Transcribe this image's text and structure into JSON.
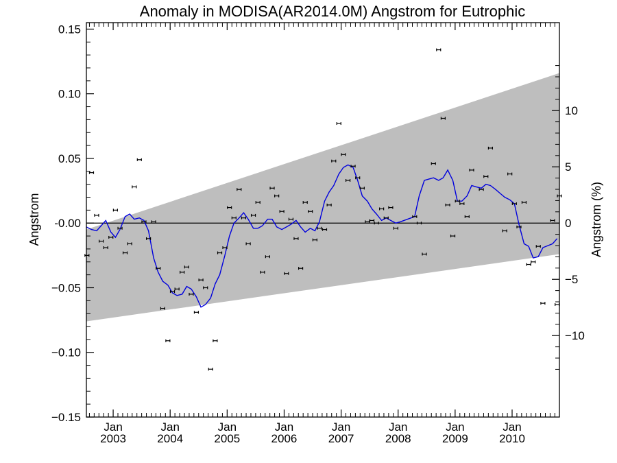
{
  "chart_data": {
    "type": "scatter",
    "title": "Anomaly in MODISA(AR2014.0M) Angstrom for Eutrophic",
    "ylabel": "Angstrom",
    "ylabel_right": "Angstrom (%)",
    "ylim": [
      -0.15,
      0.155
    ],
    "y_ticks": [
      {
        "value": 0.15,
        "label": "0.15"
      },
      {
        "value": 0.1,
        "label": "0.10"
      },
      {
        "value": 0.05,
        "label": "0.05"
      },
      {
        "value": 0.0,
        "label": "-0.00"
      },
      {
        "value": -0.05,
        "label": "−0.05"
      },
      {
        "value": -0.1,
        "label": "−0.10"
      },
      {
        "value": -0.15,
        "label": "−0.15"
      }
    ],
    "y2_ticks": [
      {
        "value": 10,
        "label": "10"
      },
      {
        "value": 5,
        "label": "5"
      },
      {
        "value": 0,
        "label": "0"
      },
      {
        "value": -5,
        "label": "−5"
      },
      {
        "value": -10,
        "label": "−10"
      }
    ],
    "y2_zero": 0.0,
    "y2_per_unit": 0.0087,
    "xlim": [
      2002.53,
      2010.83
    ],
    "x_ticks": [
      {
        "value": 2003.0,
        "month": "Jan",
        "year": "2003"
      },
      {
        "value": 2004.0,
        "month": "Jan",
        "year": "2004"
      },
      {
        "value": 2005.0,
        "month": "Jan",
        "year": "2005"
      },
      {
        "value": 2006.0,
        "month": "Jan",
        "year": "2006"
      },
      {
        "value": 2007.0,
        "month": "Jan",
        "year": "2007"
      },
      {
        "value": 2008.0,
        "month": "Jan",
        "year": "2008"
      },
      {
        "value": 2009.0,
        "month": "Jan",
        "year": "2009"
      },
      {
        "value": 2010.0,
        "month": "Jan",
        "year": "2010"
      }
    ],
    "envelope": {
      "upper": [
        [
          2002.53,
          -0.005
        ],
        [
          2010.83,
          0.116
        ]
      ],
      "lower": [
        [
          2002.53,
          -0.076
        ],
        [
          2010.83,
          -0.024
        ]
      ]
    },
    "colors": {
      "envelope": "#bebebe",
      "smooth": "#0000dd",
      "points": "#000000",
      "zero_line": "#000000"
    },
    "series": [
      {
        "style": "points-with-errorbars",
        "points": [
          [
            2002.54,
            -0.025
          ],
          [
            2002.62,
            0.039
          ],
          [
            2002.71,
            0.006
          ],
          [
            2002.79,
            -0.014
          ],
          [
            2002.87,
            -0.019
          ],
          [
            2002.96,
            -0.011
          ],
          [
            2003.04,
            0.01
          ],
          [
            2003.12,
            -0.004
          ],
          [
            2003.21,
            -0.023
          ],
          [
            2003.29,
            -0.016
          ],
          [
            2003.37,
            0.028
          ],
          [
            2003.46,
            0.049
          ],
          [
            2003.54,
            0.001
          ],
          [
            2003.62,
            -0.012
          ],
          [
            2003.71,
            0.001
          ],
          [
            2003.79,
            -0.035
          ],
          [
            2003.87,
            -0.066
          ],
          [
            2003.96,
            -0.091
          ],
          [
            2004.04,
            -0.053
          ],
          [
            2004.12,
            -0.051
          ],
          [
            2004.21,
            -0.038
          ],
          [
            2004.29,
            -0.034
          ],
          [
            2004.37,
            -0.055
          ],
          [
            2004.46,
            -0.069
          ],
          [
            2004.54,
            -0.044
          ],
          [
            2004.62,
            -0.05
          ],
          [
            2004.71,
            -0.113
          ],
          [
            2004.79,
            -0.091
          ],
          [
            2004.87,
            -0.023
          ],
          [
            2004.96,
            -0.019
          ],
          [
            2005.04,
            0.012
          ],
          [
            2005.12,
            0.004
          ],
          [
            2005.21,
            0.026
          ],
          [
            2005.29,
            0.004
          ],
          [
            2005.37,
            -0.016
          ],
          [
            2005.46,
            0.006
          ],
          [
            2005.54,
            0.016
          ],
          [
            2005.62,
            -0.038
          ],
          [
            2005.71,
            -0.026
          ],
          [
            2005.79,
            0.027
          ],
          [
            2005.87,
            0.021
          ],
          [
            2005.96,
            0.009
          ],
          [
            2006.04,
            -0.039
          ],
          [
            2006.12,
            0.003
          ],
          [
            2006.21,
            -0.012
          ],
          [
            2006.29,
            -0.035
          ],
          [
            2006.37,
            0.016
          ],
          [
            2006.46,
            0.009
          ],
          [
            2006.54,
            -0.013
          ],
          [
            2006.62,
            -0.004
          ],
          [
            2006.71,
            -0.005
          ],
          [
            2006.79,
            0.014
          ],
          [
            2006.87,
            0.048
          ],
          [
            2006.96,
            0.077
          ],
          [
            2007.04,
            0.053
          ],
          [
            2007.12,
            0.033
          ],
          [
            2007.21,
            0.044
          ],
          [
            2007.29,
            0.035
          ],
          [
            2007.37,
            0.027
          ],
          [
            2007.46,
            0.001
          ],
          [
            2007.54,
            0.002
          ],
          [
            2007.62,
            0.0
          ],
          [
            2007.71,
            0.011
          ],
          [
            2007.79,
            0.004
          ],
          [
            2007.87,
            0.012
          ],
          [
            2007.96,
            -0.004
          ],
          [
            2008.29,
            0.005
          ],
          [
            2008.37,
            -0.0
          ],
          [
            2008.46,
            -0.024
          ],
          [
            2008.62,
            0.046
          ],
          [
            2008.71,
            0.134
          ],
          [
            2008.79,
            0.081
          ],
          [
            2008.87,
            0.014
          ],
          [
            2008.96,
            -0.01
          ],
          [
            2009.04,
            0.017
          ],
          [
            2009.12,
            0.015
          ],
          [
            2009.21,
            0.005
          ],
          [
            2009.29,
            0.041
          ],
          [
            2009.46,
            0.026
          ],
          [
            2009.54,
            0.036
          ],
          [
            2009.62,
            0.058
          ],
          [
            2009.87,
            -0.006
          ],
          [
            2009.96,
            0.038
          ],
          [
            2010.04,
            0.015
          ],
          [
            2010.12,
            -0.003
          ],
          [
            2010.21,
            0.016
          ],
          [
            2010.29,
            -0.032
          ],
          [
            2010.37,
            -0.03
          ],
          [
            2010.46,
            -0.018
          ],
          [
            2010.54,
            -0.062
          ],
          [
            2010.71,
            0.002
          ],
          [
            2010.79,
            -0.063
          ],
          [
            2010.83,
            0.021
          ]
        ]
      },
      {
        "style": "smoothed-line",
        "points": [
          [
            2002.53,
            -0.003
          ],
          [
            2002.62,
            -0.005
          ],
          [
            2002.71,
            -0.006
          ],
          [
            2002.79,
            -0.002
          ],
          [
            2002.87,
            0.002
          ],
          [
            2002.96,
            -0.007
          ],
          [
            2003.04,
            -0.011
          ],
          [
            2003.12,
            -0.005
          ],
          [
            2003.21,
            0.005
          ],
          [
            2003.29,
            0.007
          ],
          [
            2003.37,
            0.003
          ],
          [
            2003.46,
            0.004
          ],
          [
            2003.54,
            0.002
          ],
          [
            2003.62,
            -0.006
          ],
          [
            2003.71,
            -0.027
          ],
          [
            2003.79,
            -0.038
          ],
          [
            2003.87,
            -0.045
          ],
          [
            2003.96,
            -0.048
          ],
          [
            2004.04,
            -0.054
          ],
          [
            2004.12,
            -0.056
          ],
          [
            2004.21,
            -0.055
          ],
          [
            2004.29,
            -0.049
          ],
          [
            2004.37,
            -0.051
          ],
          [
            2004.46,
            -0.057
          ],
          [
            2004.54,
            -0.065
          ],
          [
            2004.62,
            -0.063
          ],
          [
            2004.71,
            -0.058
          ],
          [
            2004.79,
            -0.047
          ],
          [
            2004.87,
            -0.04
          ],
          [
            2004.96,
            -0.025
          ],
          [
            2005.04,
            -0.01
          ],
          [
            2005.12,
            0.0
          ],
          [
            2005.21,
            0.004
          ],
          [
            2005.29,
            0.008
          ],
          [
            2005.37,
            0.003
          ],
          [
            2005.46,
            -0.004
          ],
          [
            2005.54,
            -0.004
          ],
          [
            2005.62,
            -0.002
          ],
          [
            2005.71,
            0.003
          ],
          [
            2005.79,
            0.003
          ],
          [
            2005.87,
            -0.003
          ],
          [
            2005.96,
            -0.005
          ],
          [
            2006.04,
            -0.003
          ],
          [
            2006.12,
            -0.001
          ],
          [
            2006.21,
            0.002
          ],
          [
            2006.29,
            -0.003
          ],
          [
            2006.37,
            -0.007
          ],
          [
            2006.46,
            -0.004
          ],
          [
            2006.54,
            -0.006
          ],
          [
            2006.62,
            0.001
          ],
          [
            2006.71,
            0.017
          ],
          [
            2006.79,
            0.024
          ],
          [
            2006.87,
            0.029
          ],
          [
            2006.96,
            0.038
          ],
          [
            2007.04,
            0.043
          ],
          [
            2007.12,
            0.045
          ],
          [
            2007.21,
            0.043
          ],
          [
            2007.29,
            0.033
          ],
          [
            2007.37,
            0.021
          ],
          [
            2007.46,
            0.017
          ],
          [
            2007.54,
            0.011
          ],
          [
            2007.62,
            0.007
          ],
          [
            2007.71,
            0.002
          ],
          [
            2007.79,
            0.004
          ],
          [
            2007.87,
            0.002
          ],
          [
            2007.96,
            0.0
          ],
          [
            2008.04,
            0.001
          ],
          [
            2008.29,
            0.005
          ],
          [
            2008.37,
            0.021
          ],
          [
            2008.46,
            0.033
          ],
          [
            2008.54,
            0.034
          ],
          [
            2008.62,
            0.035
          ],
          [
            2008.71,
            0.033
          ],
          [
            2008.79,
            0.035
          ],
          [
            2008.87,
            0.041
          ],
          [
            2008.96,
            0.033
          ],
          [
            2009.04,
            0.017
          ],
          [
            2009.12,
            0.017
          ],
          [
            2009.21,
            0.021
          ],
          [
            2009.29,
            0.029
          ],
          [
            2009.37,
            0.028
          ],
          [
            2009.46,
            0.027
          ],
          [
            2009.54,
            0.03
          ],
          [
            2009.62,
            0.029
          ],
          [
            2009.71,
            0.026
          ],
          [
            2009.79,
            0.023
          ],
          [
            2009.87,
            0.02
          ],
          [
            2009.96,
            0.018
          ],
          [
            2010.04,
            0.015
          ],
          [
            2010.12,
            -0.001
          ],
          [
            2010.21,
            -0.016
          ],
          [
            2010.29,
            -0.018
          ],
          [
            2010.37,
            -0.027
          ],
          [
            2010.46,
            -0.026
          ],
          [
            2010.54,
            -0.019
          ],
          [
            2010.71,
            -0.016
          ],
          [
            2010.79,
            -0.012
          ]
        ]
      }
    ]
  }
}
